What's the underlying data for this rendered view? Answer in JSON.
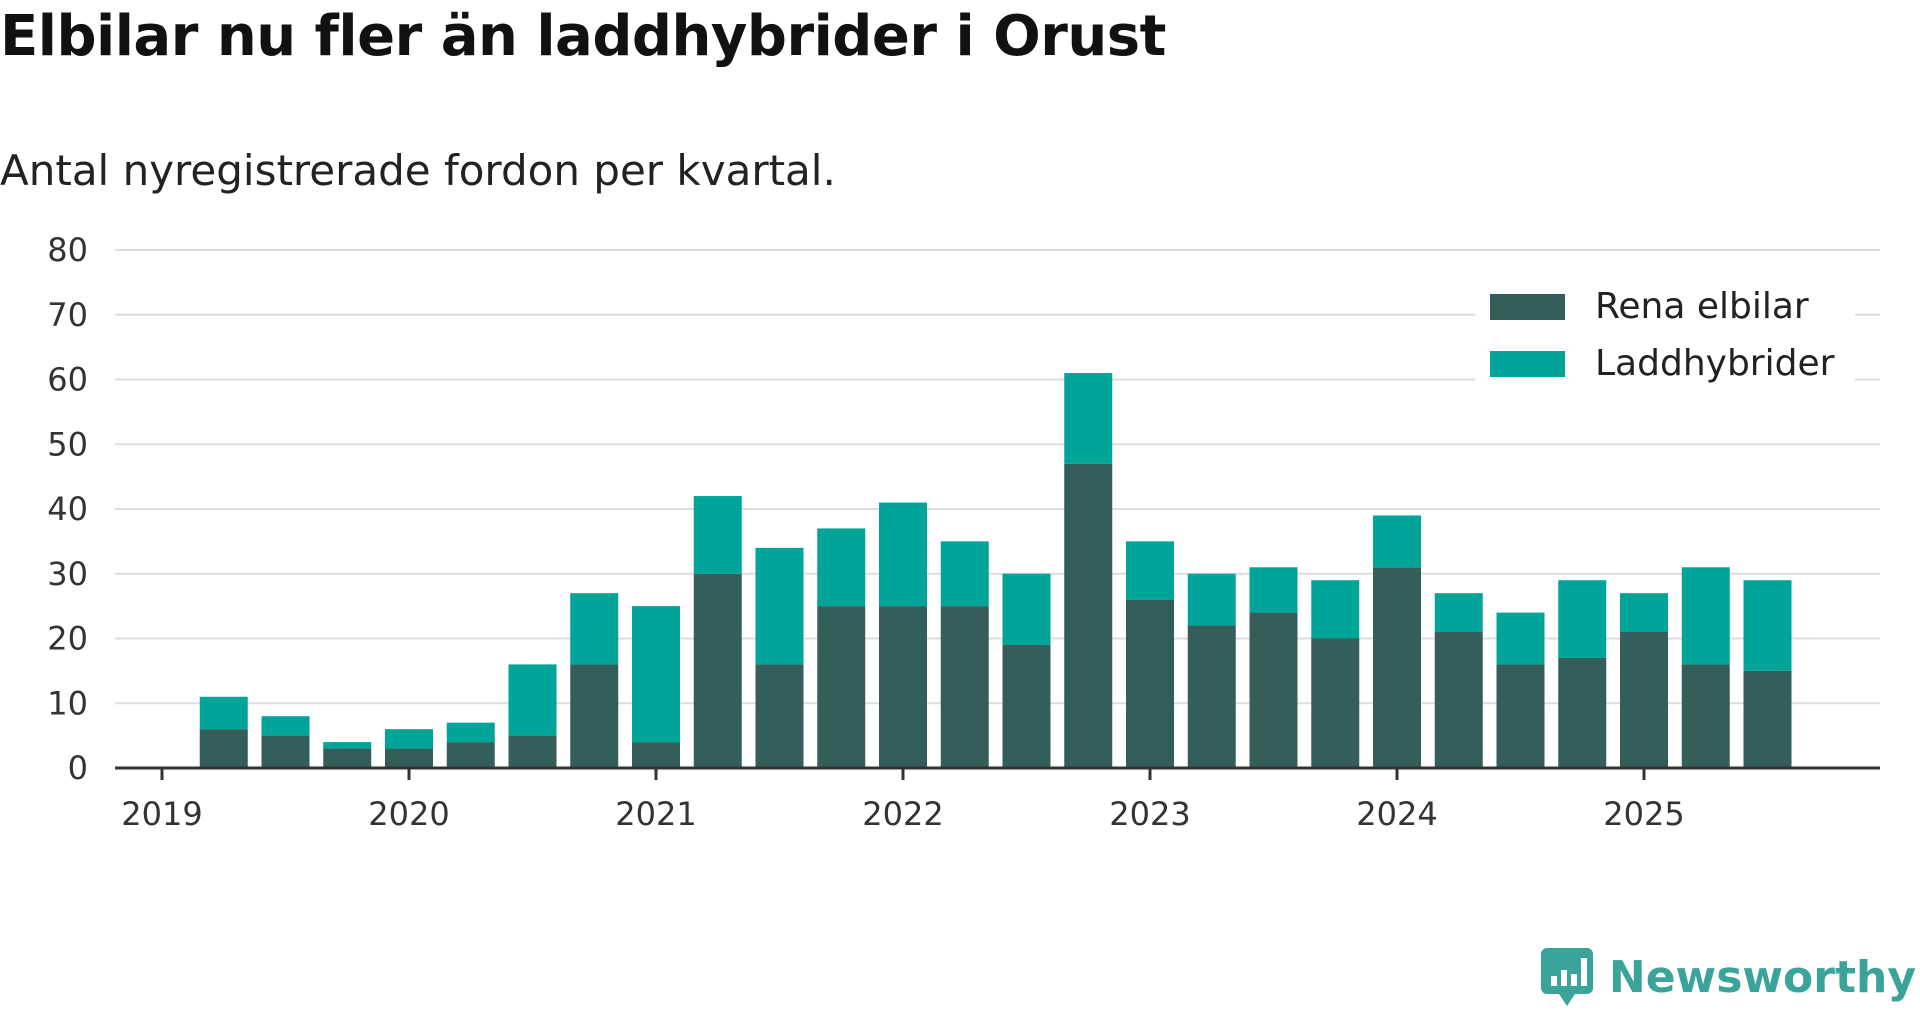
{
  "header": {
    "title": "Elbilar nu fler än laddhybrider i Orust",
    "subtitle": "Antal nyregistrerade fordon per kvartal."
  },
  "brand": {
    "name": "Newsworthy",
    "icon": "newsworthy-logo-icon",
    "color": "#3aa39a"
  },
  "colors": {
    "rena": "#335e5a",
    "ladd": "#00a499",
    "grid": "#dddddd",
    "axis": "#333333"
  },
  "chart_data": {
    "type": "bar",
    "stacked": true,
    "title": "Elbilar nu fler än laddhybrider i Orust",
    "subtitle": "Antal nyregistrerade fordon per kvartal.",
    "xlabel": "",
    "ylabel": "",
    "ylim": [
      0,
      80
    ],
    "yticks": [
      0,
      10,
      20,
      30,
      40,
      50,
      60,
      70,
      80
    ],
    "xticks": [
      "2019",
      "2020",
      "2021",
      "2022",
      "2023",
      "2024",
      "2025"
    ],
    "grid": true,
    "legend_position": "top-right",
    "categories": [
      "2019 Q2",
      "2019 Q3",
      "2019 Q4",
      "2020 Q1",
      "2020 Q2",
      "2020 Q3",
      "2020 Q4",
      "2021 Q1",
      "2021 Q2",
      "2021 Q3",
      "2021 Q4",
      "2022 Q1",
      "2022 Q2",
      "2022 Q3",
      "2022 Q4",
      "2023 Q1",
      "2023 Q2",
      "2023 Q3",
      "2023 Q4",
      "2024 Q1",
      "2024 Q2",
      "2024 Q3",
      "2024 Q4",
      "2025 Q1",
      "2025 Q2",
      "2025 Q3"
    ],
    "series": [
      {
        "name": "Rena elbilar",
        "color": "#335e5a",
        "values": [
          6,
          5,
          3,
          3,
          4,
          5,
          16,
          4,
          30,
          16,
          25,
          25,
          25,
          19,
          47,
          26,
          22,
          24,
          20,
          31,
          21,
          16,
          17,
          21,
          16,
          15
        ]
      },
      {
        "name": "Laddhybrider",
        "color": "#00a499",
        "values": [
          5,
          3,
          1,
          3,
          3,
          11,
          11,
          21,
          12,
          18,
          12,
          16,
          10,
          11,
          14,
          9,
          8,
          7,
          9,
          8,
          6,
          8,
          12,
          6,
          15,
          14
        ]
      }
    ]
  }
}
